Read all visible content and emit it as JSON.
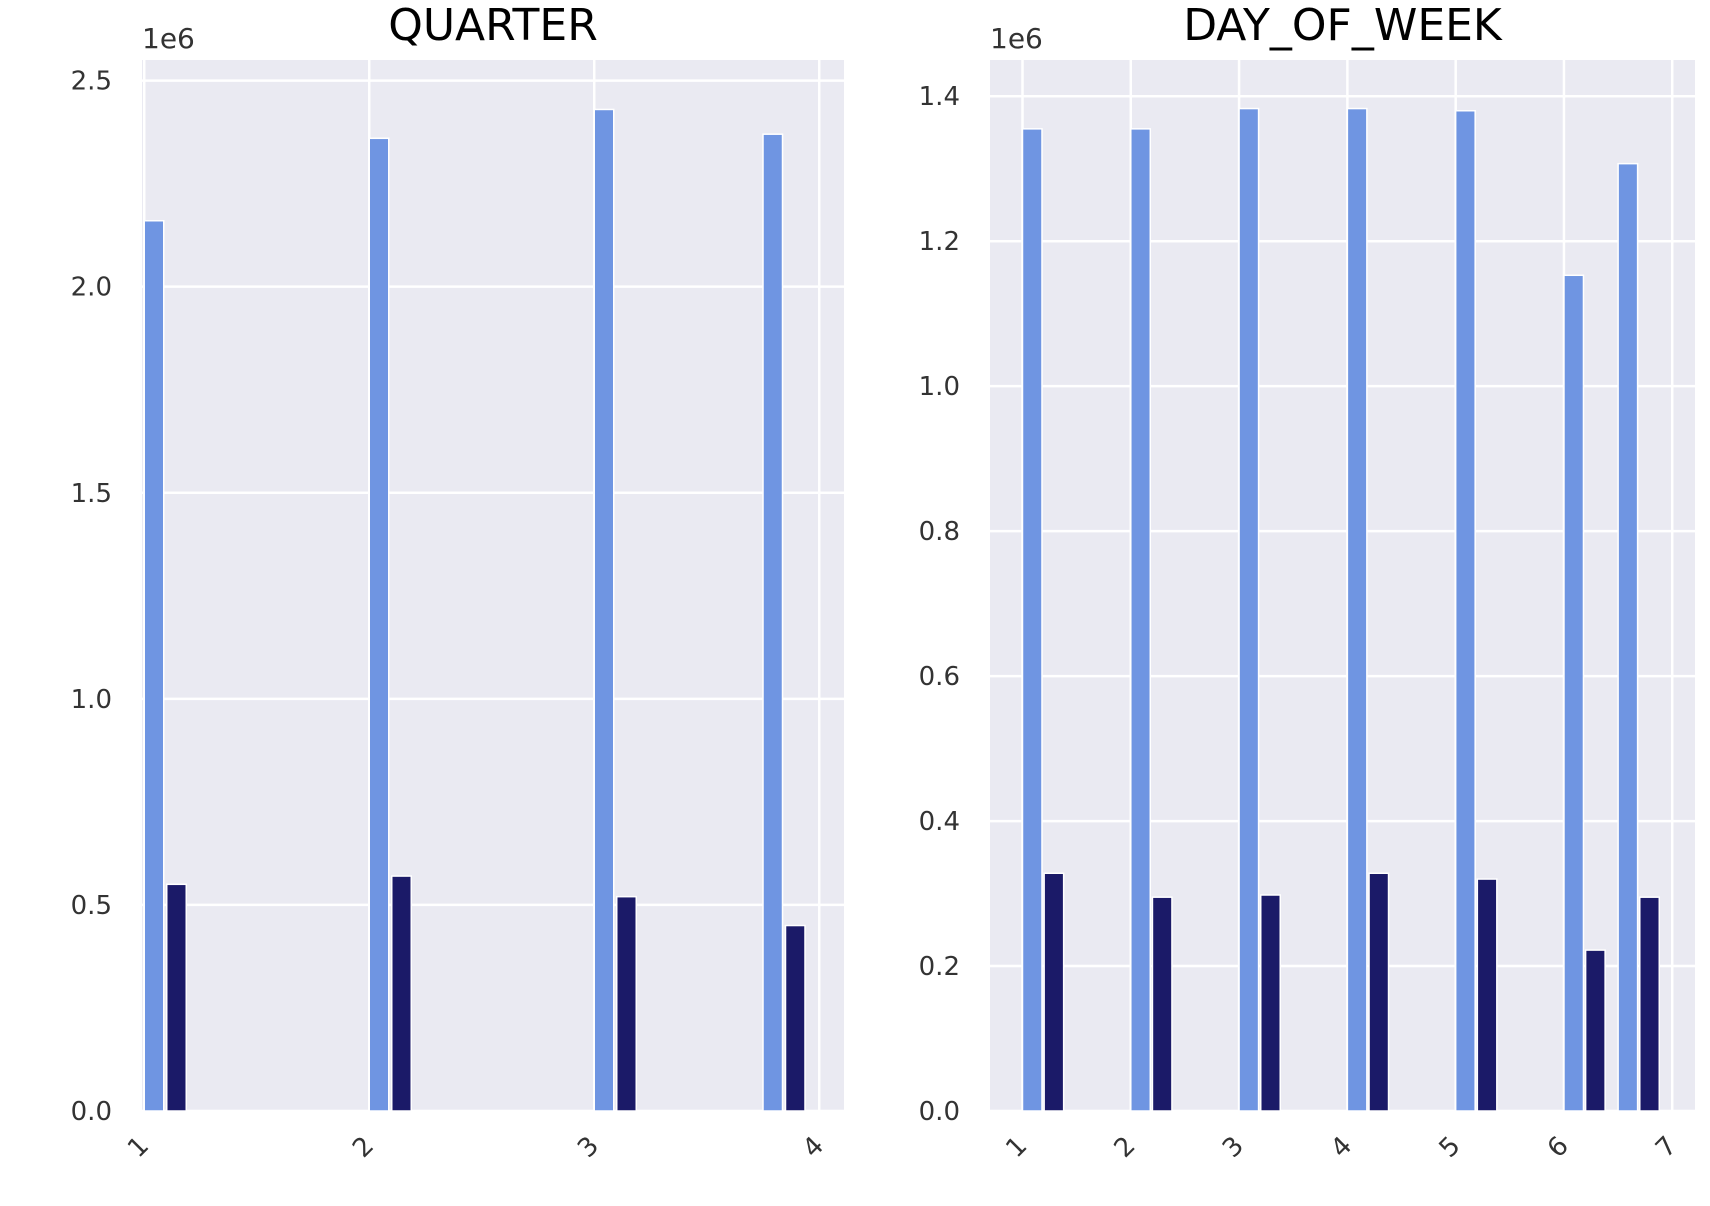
{
  "chart_data": [
    {
      "type": "bar",
      "title": "QUARTER",
      "xlabel": "",
      "ylabel": "",
      "offset_label": "1e6",
      "x_ticks": [
        "1",
        "2",
        "3",
        "4"
      ],
      "y_ticks": [
        "0.0",
        "0.5",
        "1.0",
        "1.5",
        "2.0",
        "2.5"
      ],
      "xlim": [
        0.99,
        4.11
      ],
      "ylim": [
        0,
        2.55
      ],
      "grid": true,
      "legend": "none",
      "series": [
        {
          "color": "#6f95e2",
          "x": [
            1.0,
            2.0,
            3.0,
            3.75
          ],
          "values": [
            2.16,
            2.36,
            2.43,
            2.37
          ]
        },
        {
          "color": "#1b1a68",
          "x": [
            1.1,
            2.1,
            3.1,
            3.85
          ],
          "values": [
            0.55,
            0.57,
            0.52,
            0.45
          ]
        }
      ]
    },
    {
      "type": "bar",
      "title": "DAY_OF_WEEK",
      "xlabel": "",
      "ylabel": "",
      "offset_label": "1e6",
      "x_ticks": [
        "1",
        "2",
        "3",
        "4",
        "5",
        "6",
        "7"
      ],
      "y_ticks": [
        "0.0",
        "0.2",
        "0.4",
        "0.6",
        "0.8",
        "1.0",
        "1.2",
        "1.4"
      ],
      "xlim": [
        0.7,
        7.21
      ],
      "ylim": [
        0,
        1.45
      ],
      "grid": true,
      "legend": "none",
      "series": [
        {
          "color": "#6f95e2",
          "x": [
            1.0,
            2.0,
            3.0,
            4.0,
            5.0,
            6.0,
            6.5
          ],
          "values": [
            1.355,
            1.355,
            1.383,
            1.383,
            1.38,
            1.153,
            1.307
          ]
        },
        {
          "color": "#1b1a68",
          "x": [
            1.2,
            2.2,
            3.2,
            4.2,
            5.2,
            6.2,
            6.7
          ],
          "values": [
            0.328,
            0.295,
            0.298,
            0.328,
            0.32,
            0.222,
            0.295
          ]
        }
      ]
    }
  ]
}
